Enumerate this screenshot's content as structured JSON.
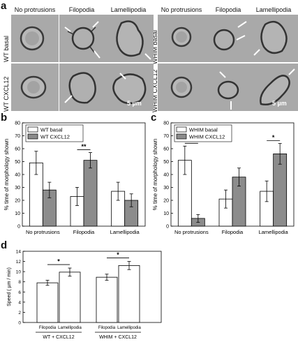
{
  "panels": {
    "a": "a",
    "b": "b",
    "c": "c",
    "d": "d"
  },
  "panel_a": {
    "left": {
      "headers": [
        "No protrusions",
        "Filopodia",
        "Lamellipodia"
      ],
      "rows": [
        "WT basal",
        "WT CXCL12"
      ],
      "scale": "5 µm"
    },
    "right": {
      "headers": [
        "No protrusions",
        "Filopodia",
        "Lamellipodia"
      ],
      "rows": [
        "WHIM basal",
        "WHIM CXCL12"
      ],
      "scale": "5 µm"
    }
  },
  "chart_data": [
    {
      "panel": "b",
      "type": "bar",
      "categories": [
        "No protrusions",
        "Filopodia",
        "Lamellipodia"
      ],
      "series": [
        {
          "name": "WT basal",
          "values": [
            49,
            23,
            27
          ],
          "errors": [
            9,
            7,
            7
          ],
          "color": "#ffffff"
        },
        {
          "name": "WT CXCL12",
          "values": [
            28,
            51,
            20
          ],
          "errors": [
            6,
            6,
            5
          ],
          "color": "#8c8c8c"
        }
      ],
      "ylabel": "% time of morphology shown",
      "ylim": [
        0,
        80
      ],
      "yticks": [
        0,
        10,
        20,
        30,
        40,
        50,
        60,
        70,
        80
      ],
      "legend": "top-left",
      "annotations": [
        {
          "category": "Filopodia",
          "text": "**"
        }
      ]
    },
    {
      "panel": "c",
      "type": "bar",
      "categories": [
        "No protrusions",
        "Filopodia",
        "Lamellipodia"
      ],
      "series": [
        {
          "name": "WHIM basal",
          "values": [
            51,
            21,
            27
          ],
          "errors": [
            11,
            7,
            8
          ],
          "color": "#ffffff"
        },
        {
          "name": "WHIM CXCL12",
          "values": [
            6,
            38,
            56
          ],
          "errors": [
            3,
            7,
            8
          ],
          "color": "#8c8c8c"
        }
      ],
      "ylabel": "% time of morphology shown",
      "ylim": [
        0,
        80
      ],
      "yticks": [
        0,
        10,
        20,
        30,
        40,
        50,
        60,
        70,
        80
      ],
      "legend": "top-left",
      "annotations": [
        {
          "category": "No protrusions",
          "text": "****"
        },
        {
          "category": "Lamellipodia",
          "text": "*"
        }
      ]
    },
    {
      "panel": "d",
      "type": "bar",
      "categories": [
        "Filopodia",
        "Lamellipodia",
        "Filopodia",
        "Lamellipodia"
      ],
      "groups": [
        "WT + CXCL12",
        "WHIM + CXCL12"
      ],
      "values": [
        7.8,
        9.9,
        8.9,
        11.2
      ],
      "errors": [
        0.5,
        0.8,
        0.6,
        0.8
      ],
      "ylabel": "Speed ( µm / min)",
      "ylim": [
        0,
        14
      ],
      "yticks": [
        0,
        2,
        4,
        6,
        8,
        10,
        12,
        14
      ],
      "annotations": [
        {
          "group": "WT + CXCL12",
          "text": "*"
        },
        {
          "group": "WHIM + CXCL12",
          "text": "*"
        }
      ]
    }
  ]
}
